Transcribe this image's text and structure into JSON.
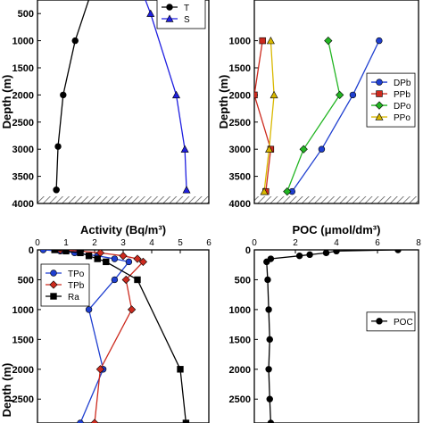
{
  "chart_data": [
    {
      "type": "line",
      "panel": "top-left",
      "ylabel": "Depth (m)",
      "ylim": [
        4000,
        250
      ],
      "xlim": [
        0,
        1
      ],
      "yticks": [
        500,
        1000,
        1500,
        2000,
        2500,
        3000,
        3500,
        4000
      ],
      "grid": false,
      "legend_position": "top-right",
      "series": [
        {
          "name": "T",
          "color": "#000000",
          "marker": "circle",
          "x": [
            0.32,
            0.22,
            0.15,
            0.12,
            0.11,
            0.11
          ],
          "y": [
            50,
            1000,
            2000,
            2950,
            3750,
            3750
          ]
        },
        {
          "name": "S",
          "color": "#1f1fe0",
          "marker": "triangle",
          "x": [
            0.6,
            0.66,
            0.81,
            0.86,
            0.87
          ],
          "y": [
            0,
            500,
            2000,
            3000,
            3750
          ]
        }
      ],
      "bottom_hatch": true
    },
    {
      "type": "line",
      "panel": "top-right",
      "ylabel": "Depth (m)",
      "ylim": [
        4000,
        250
      ],
      "xlim": [
        0,
        1
      ],
      "yticks": [
        1000,
        1500,
        2000,
        2500,
        3000,
        3500,
        4000
      ],
      "grid": false,
      "legend_position": "center-right",
      "series": [
        {
          "name": "DPb",
          "color": "#1f3fd0",
          "marker": "circle",
          "x": [
            0.76,
            0.6,
            0.41,
            0.23
          ],
          "y": [
            1000,
            2000,
            3000,
            3780
          ]
        },
        {
          "name": "PPb",
          "color": "#cc2a1e",
          "marker": "square",
          "x": [
            0.05,
            0.0,
            0.1,
            0.07
          ],
          "y": [
            1000,
            2000,
            3000,
            3780
          ]
        },
        {
          "name": "DPo",
          "color": "#22b522",
          "marker": "diamond",
          "x": [
            0.45,
            0.52,
            0.3,
            0.2
          ],
          "y": [
            1000,
            2000,
            3000,
            3780
          ]
        },
        {
          "name": "PPo",
          "color": "#d9b800",
          "marker": "triangle",
          "x": [
            0.1,
            0.12,
            0.09,
            0.06
          ],
          "y": [
            1000,
            2000,
            3000,
            3780
          ]
        }
      ],
      "bottom_hatch": true
    },
    {
      "type": "line",
      "panel": "bottom-left",
      "title": "Activity (Bq/m³)",
      "ylabel": "Depth (m)",
      "xlim": [
        0,
        6
      ],
      "ylim": [
        2900,
        0
      ],
      "xticks": [
        0,
        1,
        2,
        3,
        4,
        5,
        6
      ],
      "yticks": [
        0,
        500,
        1000,
        1500,
        2000,
        2500
      ],
      "grid": false,
      "legend_position": "center-left",
      "series": [
        {
          "name": "TPo",
          "color": "#1f3fd0",
          "marker": "circle",
          "x": [
            0.2,
            0.8,
            1.3,
            2.1,
            2.7,
            3.2,
            2.7,
            1.8,
            2.3,
            1.5
          ],
          "y": [
            0,
            20,
            50,
            100,
            150,
            200,
            500,
            1000,
            2000,
            2900
          ]
        },
        {
          "name": "TPb",
          "color": "#cc2a1e",
          "marker": "diamond",
          "x": [
            0.8,
            1.5,
            2.2,
            3.0,
            3.5,
            3.7,
            3.1,
            3.3,
            2.2,
            2.0
          ],
          "y": [
            0,
            20,
            50,
            100,
            150,
            200,
            500,
            1000,
            2000,
            2900
          ]
        },
        {
          "name": "Ra",
          "color": "#000000",
          "marker": "square",
          "x": [
            0.6,
            1.0,
            1.5,
            1.8,
            2.1,
            2.4,
            3.5,
            5.0,
            5.2
          ],
          "y": [
            0,
            20,
            50,
            100,
            150,
            200,
            500,
            2000,
            2900
          ]
        }
      ]
    },
    {
      "type": "line",
      "panel": "bottom-right",
      "title": "POC (μmol/dm³)",
      "xlim": [
        0,
        8
      ],
      "ylim": [
        2900,
        0
      ],
      "xticks": [
        0,
        2,
        4,
        6,
        8
      ],
      "yticks": [
        0,
        500,
        1000,
        1500,
        2000,
        2500
      ],
      "grid": false,
      "legend_position": "center-right",
      "series": [
        {
          "name": "POC",
          "color": "#000000",
          "marker": "circle",
          "x": [
            7.0,
            4.0,
            3.5,
            2.7,
            2.2,
            0.8,
            0.6,
            0.65,
            0.7,
            0.75,
            0.7,
            0.75,
            0.8
          ],
          "y": [
            0,
            20,
            50,
            80,
            100,
            150,
            200,
            500,
            1000,
            1500,
            2000,
            2500,
            2900
          ]
        }
      ]
    }
  ]
}
